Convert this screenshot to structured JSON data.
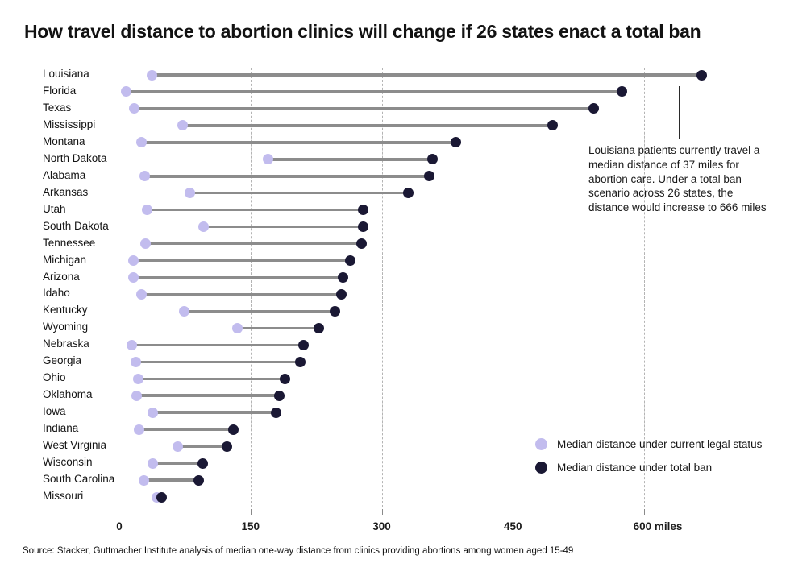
{
  "title": "How travel distance to abortion clinics will change if 26 states enact a total ban",
  "source": "Source: Stacker, Guttmacher Institute analysis of median one-way distance from clinics providing abortions among women aged 15-49",
  "annotation": {
    "text": "Louisiana patients currently travel a median distance of 37 miles for abortion care. Under a total ban scenario across 26 states, the distance would increase to 666 miles"
  },
  "legend": {
    "items": [
      {
        "label": "Median distance under current legal status",
        "series": "current"
      },
      {
        "label": "Median distance under total ban",
        "series": "ban"
      }
    ]
  },
  "axis": {
    "ticks": [
      0,
      150,
      300,
      450,
      600
    ],
    "unit_suffix": " miles"
  },
  "colors": {
    "current": "#c2bcee",
    "ban": "#1a1834",
    "connector": "#8c8c8c",
    "gridline": "#b4b4b4"
  },
  "chart_data": {
    "type": "dumbbell",
    "title": "How travel distance to abortion clinics will change if 26 states enact a total ban",
    "xlabel": "miles",
    "xlim": [
      0,
      690
    ],
    "grid": "dashed-vertical",
    "legend_position": "bottom-right",
    "categories": [
      "Louisiana",
      "Florida",
      "Texas",
      "Mississippi",
      "Montana",
      "North Dakota",
      "Alabama",
      "Arkansas",
      "Utah",
      "South Dakota",
      "Tennessee",
      "Michigan",
      "Arizona",
      "Idaho",
      "Kentucky",
      "Wyoming",
      "Nebraska",
      "Georgia",
      "Ohio",
      "Oklahoma",
      "Iowa",
      "Indiana",
      "West Virginia",
      "Wisconsin",
      "South Carolina",
      "Missouri"
    ],
    "series": [
      {
        "name": "Median distance under current legal status",
        "values": [
          37,
          8,
          17,
          72,
          25,
          170,
          29,
          81,
          32,
          96,
          30,
          16,
          16,
          25,
          74,
          135,
          14,
          19,
          22,
          20,
          38,
          23,
          67,
          38,
          28,
          43
        ]
      },
      {
        "name": "Median distance under total ban",
        "values": [
          666,
          575,
          542,
          495,
          385,
          358,
          354,
          330,
          279,
          279,
          277,
          264,
          256,
          254,
          247,
          228,
          211,
          207,
          189,
          183,
          179,
          130,
          123,
          95,
          91,
          48
        ]
      }
    ]
  }
}
